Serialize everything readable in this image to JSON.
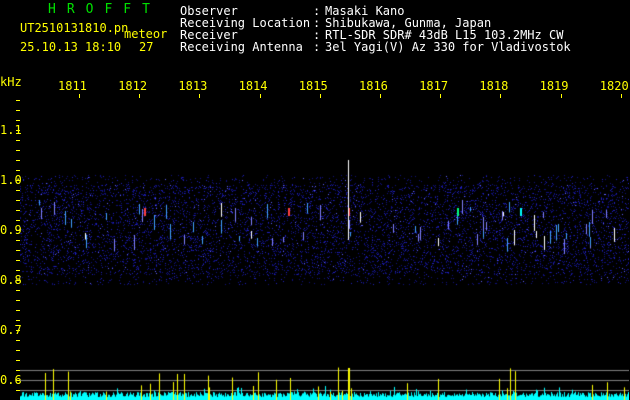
{
  "header": {
    "app_title": "HROFFT",
    "filename": "UT2510131810.pn",
    "mode": "meteor",
    "datetime": "25.10.13 18:10",
    "count": "27",
    "fields": [
      {
        "label": "Observer",
        "value": "Masaki Kano"
      },
      {
        "label": "Receiving Location",
        "value": "Shibukawa, Gunma, Japan"
      },
      {
        "label": "Receiver",
        "value": "RTL-SDR SDR# 43dB L15 103.2MHz CW"
      },
      {
        "label": "Receiving Antenna",
        "value": "3el Yagi(V) Az 330 for Vladivostok"
      }
    ]
  },
  "axes": {
    "y_unit": "kHz",
    "y_ticks": [
      "1.1",
      "1.0",
      "0.9",
      "0.8",
      "0.7",
      "0.6"
    ],
    "x_ticks": [
      "1811",
      "1812",
      "1813",
      "1814",
      "1815",
      "1816",
      "1817",
      "1818",
      "1819",
      "1820"
    ]
  },
  "colors": {
    "axis": "#ffff00",
    "title": "#00e000",
    "text": "#ffffff",
    "level": "#00ffff",
    "meteor": "#ffff00"
  }
}
